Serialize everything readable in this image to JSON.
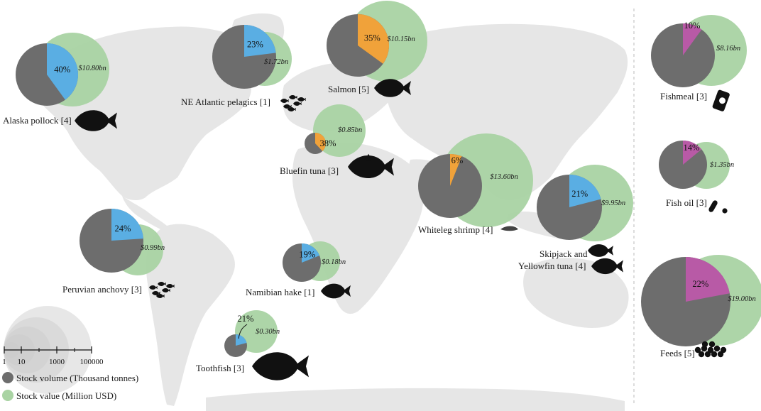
{
  "chart_data": {
    "type": "pie",
    "legend": {
      "volume_label": "Stock volume (Thousand tonnes)",
      "value_label": "Stock value (Million USD)",
      "scale_ticks": [
        "1",
        "10",
        "1000",
        "100000"
      ]
    },
    "colors": {
      "volume": "#6d6d6d",
      "value": "#a9d3a3",
      "wild_share": "#5aaee3",
      "farmed_share": "#f0a23a",
      "feed_share": "#b85aa6",
      "land": "#e6e6e6",
      "scale_circles": "#c9c9c9"
    },
    "stocks": [
      {
        "name": "Alaska pollock [4]",
        "share": "40%",
        "share_value": 40,
        "value": "$10.80bn",
        "share_kind": "wild"
      },
      {
        "name": "NE Atlantic pelagics [1]",
        "share": "23%",
        "share_value": 23,
        "value": "$1.72bn",
        "share_kind": "wild"
      },
      {
        "name": "Salmon [5]",
        "share": "35%",
        "share_value": 35,
        "value": "$10.15bn",
        "share_kind": "farmed"
      },
      {
        "name": "Bluefin tuna [3]",
        "share": "38%",
        "share_value": 38,
        "value": "$0.85bn",
        "share_kind": "farmed"
      },
      {
        "name": "Whiteleg shrimp [4]",
        "share": "6%",
        "share_value": 6,
        "value": "$13.60bn",
        "share_kind": "farmed"
      },
      {
        "name": "Skipjack and Yellowfin tuna [4]",
        "name_line1": "Skipjack and",
        "name_line2": "Yellowfin tuna [4]",
        "share": "21%",
        "share_value": 21,
        "value": "$9.95bn",
        "share_kind": "wild"
      },
      {
        "name": "Peruvian anchovy [3]",
        "share": "24%",
        "share_value": 24,
        "value": "$0.99bn",
        "share_kind": "wild"
      },
      {
        "name": "Namibian hake [1]",
        "share": "19%",
        "share_value": 19,
        "value": "$0.18bn",
        "share_kind": "wild"
      },
      {
        "name": "Toothfish [3]",
        "share": "21%",
        "share_value": 21,
        "value": "$0.30bn",
        "share_kind": "wild"
      },
      {
        "name": "Fishmeal [3]",
        "share": "10%",
        "share_value": 10,
        "value": "$8.16bn",
        "share_kind": "feed"
      },
      {
        "name": "Fish oil [3]",
        "share": "14%",
        "share_value": 14,
        "value": "$1.35bn",
        "share_kind": "feed"
      },
      {
        "name": "Feeds [5]",
        "share": "22%",
        "share_value": 22,
        "value": "$19.00bn",
        "share_kind": "feed"
      }
    ]
  }
}
